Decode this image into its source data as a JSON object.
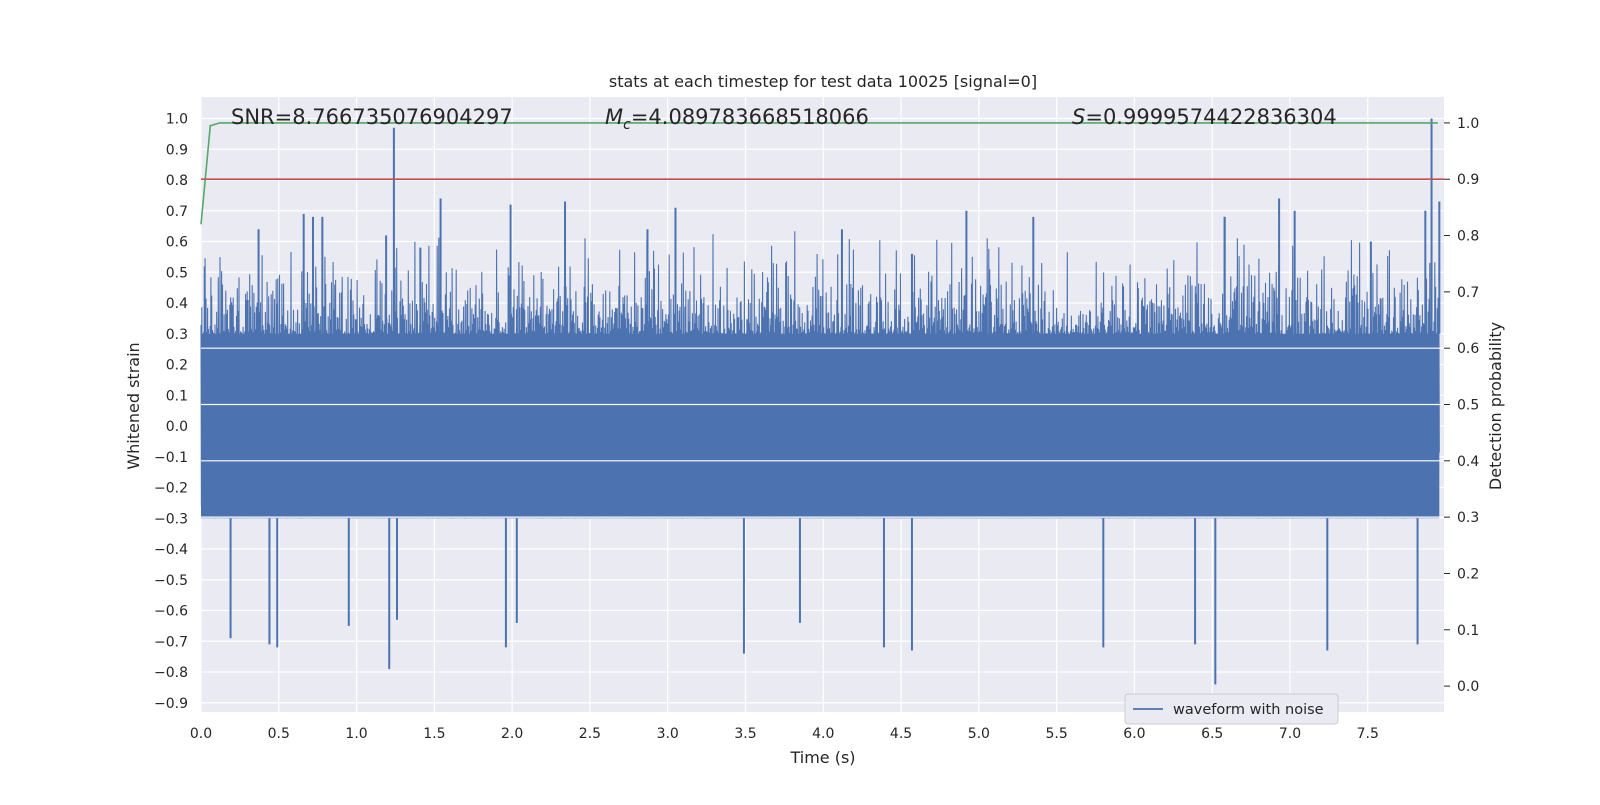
{
  "chart_data": {
    "type": "line",
    "title": "stats at each timestep for test data 10025 [signal=0]",
    "xlabel": "Time (s)",
    "ylabel": "Whitened strain",
    "y2label": "Detection probability",
    "xlim": [
      0.0,
      7.99
    ],
    "ylim": [
      -0.93,
      1.07
    ],
    "y2lim": [
      -0.046,
      1.046
    ],
    "x_ticks": [
      "0.0",
      "0.5",
      "1.0",
      "1.5",
      "2.0",
      "2.5",
      "3.0",
      "3.5",
      "4.0",
      "4.5",
      "5.0",
      "5.5",
      "6.0",
      "6.5",
      "7.0",
      "7.5"
    ],
    "y_ticks": [
      "−0.9",
      "−0.8",
      "−0.7",
      "−0.6",
      "−0.5",
      "−0.4",
      "−0.3",
      "−0.2",
      "−0.1",
      "0.0",
      "0.1",
      "0.2",
      "0.3",
      "0.4",
      "0.5",
      "0.6",
      "0.7",
      "0.8",
      "0.9",
      "1.0"
    ],
    "y2_ticks": [
      "0.0",
      "0.1",
      "0.2",
      "0.3",
      "0.4",
      "0.5",
      "0.6",
      "0.7",
      "0.8",
      "0.9",
      "1.0"
    ],
    "grid": true,
    "legend": {
      "entries": [
        "waveform with noise"
      ],
      "placement": "lower-right"
    },
    "annotations": {
      "snr": "SNR=8.766735076904297",
      "mc_symbol": "M",
      "mc_subscript": "c",
      "mc_value": "=4.089783668518066",
      "s_symbol": "S",
      "s_value": "=0.9999574422836304"
    },
    "series": [
      {
        "name": "waveform with noise",
        "axis": "left",
        "kind": "dense-noise",
        "color": "#4c72b0",
        "envelope": {
          "core_min": -0.3,
          "core_max": 0.3,
          "typical_peak": 0.45,
          "typical_trough": -0.5
        },
        "peaks": [
          {
            "x": 0.37,
            "y": 0.64
          },
          {
            "x": 0.66,
            "y": 0.69
          },
          {
            "x": 0.72,
            "y": 0.68
          },
          {
            "x": 0.78,
            "y": 0.68
          },
          {
            "x": 1.19,
            "y": 0.62
          },
          {
            "x": 1.24,
            "y": 0.97
          },
          {
            "x": 1.41,
            "y": 0.58
          },
          {
            "x": 1.54,
            "y": 0.74
          },
          {
            "x": 1.99,
            "y": 0.72
          },
          {
            "x": 2.34,
            "y": 0.73
          },
          {
            "x": 2.87,
            "y": 0.64
          },
          {
            "x": 3.05,
            "y": 0.71
          },
          {
            "x": 4.12,
            "y": 0.64
          },
          {
            "x": 4.57,
            "y": 0.56
          },
          {
            "x": 4.92,
            "y": 0.7
          },
          {
            "x": 5.35,
            "y": 0.68
          },
          {
            "x": 6.58,
            "y": 0.68
          },
          {
            "x": 6.58,
            "y": 0.68
          },
          {
            "x": 6.93,
            "y": 0.74
          },
          {
            "x": 7.03,
            "y": 0.7
          },
          {
            "x": 7.52,
            "y": 0.6
          },
          {
            "x": 7.87,
            "y": 0.7
          },
          {
            "x": 7.91,
            "y": 1.0
          },
          {
            "x": 7.96,
            "y": 0.73
          }
        ],
        "troughs": [
          {
            "x": 0.19,
            "y": -0.69
          },
          {
            "x": 0.44,
            "y": -0.71
          },
          {
            "x": 0.49,
            "y": -0.72
          },
          {
            "x": 0.95,
            "y": -0.65
          },
          {
            "x": 1.21,
            "y": -0.79
          },
          {
            "x": 1.26,
            "y": -0.63
          },
          {
            "x": 1.96,
            "y": -0.72
          },
          {
            "x": 2.03,
            "y": -0.64
          },
          {
            "x": 3.49,
            "y": -0.74
          },
          {
            "x": 3.85,
            "y": -0.64
          },
          {
            "x": 4.39,
            "y": -0.72
          },
          {
            "x": 4.57,
            "y": -0.73
          },
          {
            "x": 5.8,
            "y": -0.72
          },
          {
            "x": 6.39,
            "y": -0.71
          },
          {
            "x": 6.52,
            "y": -0.84
          },
          {
            "x": 7.24,
            "y": -0.73
          },
          {
            "x": 7.82,
            "y": -0.71
          }
        ]
      },
      {
        "name": "",
        "axis": "right",
        "kind": "line",
        "color": "#55a868",
        "x": [
          0.0,
          0.06,
          0.12,
          7.95
        ],
        "y": [
          0.82,
          0.995,
          1.0,
          1.0
        ]
      },
      {
        "name": "",
        "axis": "right",
        "kind": "hline",
        "color": "#c44e52",
        "y": 0.9
      }
    ]
  }
}
